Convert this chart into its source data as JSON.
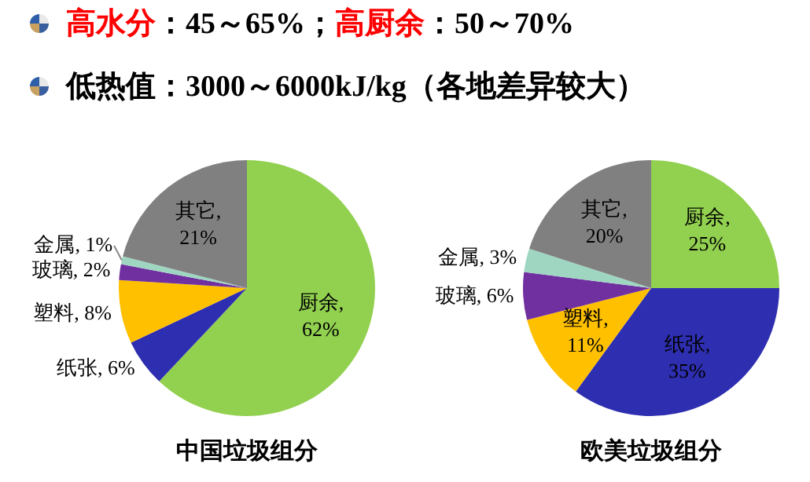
{
  "chart_data": [
    {
      "type": "other",
      "annotations": [
        "高水分：45～65%；高厨余：50～70%",
        "低热值：3000～6000kJ/kg（各地差异较大）"
      ]
    },
    {
      "type": "pie",
      "title": "中国垃圾组分",
      "categories": [
        "厨余",
        "纸张",
        "塑料",
        "玻璃",
        "金属",
        "其它"
      ],
      "values": [
        62,
        6,
        8,
        2,
        1,
        21
      ],
      "colors": [
        "#92d050",
        "#2e2eb0",
        "#ffc000",
        "#7030a0",
        "#9fd6c2",
        "#808080"
      ],
      "value_labels": [
        ", 62%",
        ", 6%",
        ", 8%",
        ", 2%",
        ", 1%",
        ", 21%"
      ]
    },
    {
      "type": "pie",
      "title": "欧美垃圾组分",
      "categories": [
        "厨余",
        "纸张",
        "塑料",
        "玻璃",
        "金属",
        "其它"
      ],
      "values": [
        25,
        35,
        11,
        6,
        3,
        20
      ],
      "colors": [
        "#92d050",
        "#2e2eb0",
        "#ffc000",
        "#7030a0",
        "#9fd6c2",
        "#808080"
      ],
      "value_labels": [
        ", 25%",
        ", 35%",
        ", 11%",
        ", 6%",
        ", 3%",
        ", 20%"
      ]
    }
  ]
}
